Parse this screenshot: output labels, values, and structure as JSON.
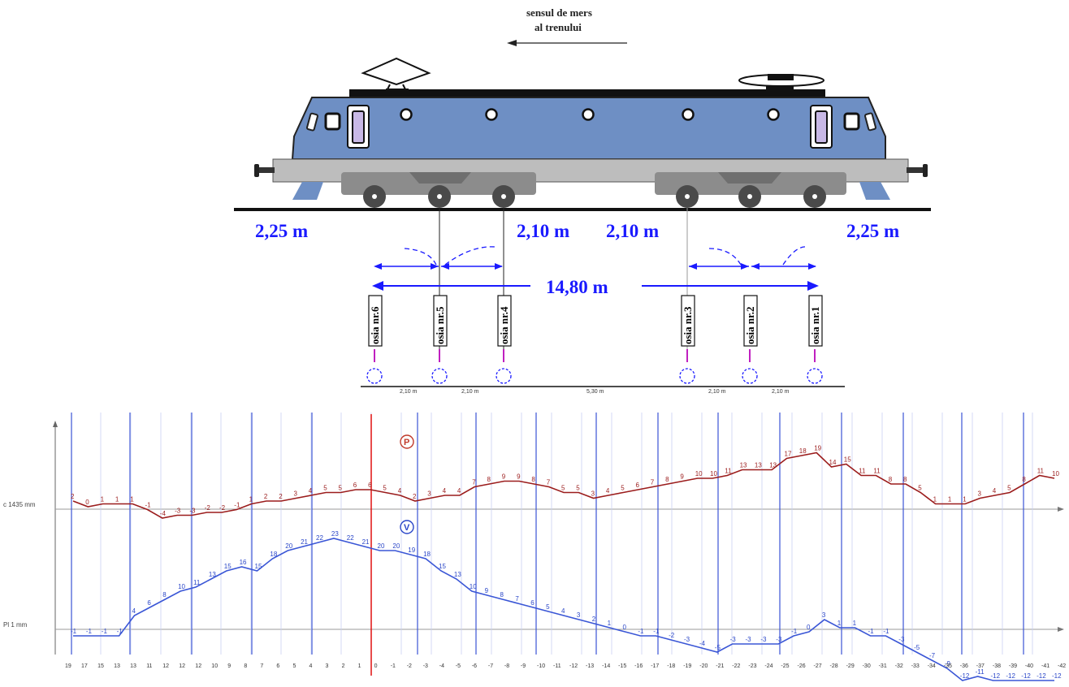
{
  "direction": {
    "line1": "sensul de mers",
    "line2": "al trenului"
  },
  "dimensions": {
    "left_overhang": "2,25 m",
    "right_overhang": "2,25 m",
    "bogie_left_spacing": "2,10 m",
    "bogie_right_spacing": "2,10 m",
    "total_length": "14,80 m"
  },
  "axles": [
    "osia nr.6",
    "osia nr.5",
    "osia nr.4",
    "osia nr.3",
    "osia nr.2",
    "osia nr.1"
  ],
  "axle_spacing_labels": [
    "2,10 m",
    "2,10 m",
    "5,30 m",
    "2,10 m",
    "2,10 m"
  ],
  "chart": {
    "top_curve_marker": "P",
    "bottom_curve_marker": "V",
    "top_baseline_label": "c 1435 mm",
    "bottom_baseline_label": "Pl 1 mm",
    "top_values": [
      "2",
      "0",
      "1",
      "1",
      "1",
      "-1",
      "-4",
      "-3",
      "-3",
      "-2",
      "-2",
      "-1",
      "1",
      "2",
      "2",
      "3",
      "4",
      "5",
      "5",
      "6",
      "6",
      "5",
      "4",
      "2",
      "3",
      "4",
      "4",
      "7",
      "8",
      "9",
      "9",
      "8",
      "7",
      "5",
      "5",
      "3",
      "4",
      "5",
      "6",
      "7",
      "8",
      "9",
      "10",
      "10",
      "11",
      "13",
      "13",
      "13",
      "17",
      "18",
      "19",
      "14",
      "15",
      "11",
      "11",
      "8",
      "8",
      "5",
      "1",
      "1",
      "1",
      "3",
      "4",
      "5",
      "8",
      "11",
      "10"
    ],
    "bottom_values": [
      "-1",
      "-1",
      "-1",
      "-1",
      "4",
      "6",
      "8",
      "10",
      "11",
      "13",
      "15",
      "16",
      "15",
      "18",
      "20",
      "21",
      "22",
      "23",
      "22",
      "21",
      "20",
      "20",
      "19",
      "18",
      "15",
      "13",
      "10",
      "9",
      "8",
      "7",
      "6",
      "5",
      "4",
      "3",
      "2",
      "1",
      "0",
      "-1",
      "-1",
      "-2",
      "-3",
      "-4",
      "-5",
      "-3",
      "-3",
      "-3",
      "-3",
      "-1",
      "0",
      "3",
      "1",
      "1",
      "-1",
      "-1",
      "-3",
      "-5",
      "-7",
      "-9",
      "-12",
      "-11",
      "-12",
      "-12",
      "-12",
      "-12",
      "-12"
    ],
    "x_axis_ticks": [
      "19",
      "17",
      "15",
      "13",
      "13",
      "11",
      "12",
      "12",
      "12",
      "10",
      "9",
      "8",
      "7",
      "6",
      "5",
      "4",
      "3",
      "2",
      "1",
      "0",
      "-1",
      "-2",
      "-3",
      "-4",
      "-5",
      "-6",
      "-7",
      "-8",
      "-9",
      "-10",
      "-11",
      "-12",
      "-13",
      "-14",
      "-15",
      "-16",
      "-17",
      "-18",
      "-19",
      "-20",
      "-21",
      "-22",
      "-23",
      "-24",
      "-25",
      "-26",
      "-27",
      "-28",
      "-29",
      "-30",
      "-31",
      "-32",
      "-33",
      "-34",
      "-35",
      "-36",
      "-37",
      "-38",
      "-39",
      "-40",
      "-41",
      "-42"
    ]
  },
  "colors": {
    "body": "#6e8fc4",
    "roof": "#6e8fc4",
    "frame": "#bdbdbd",
    "bogie": "#8c8c8c",
    "dimension": "#1a1aff",
    "top_curve": "#9b1c1c",
    "bottom_curve": "#2a46c8",
    "vline": "#3b54d6",
    "redline": "#e01010"
  }
}
